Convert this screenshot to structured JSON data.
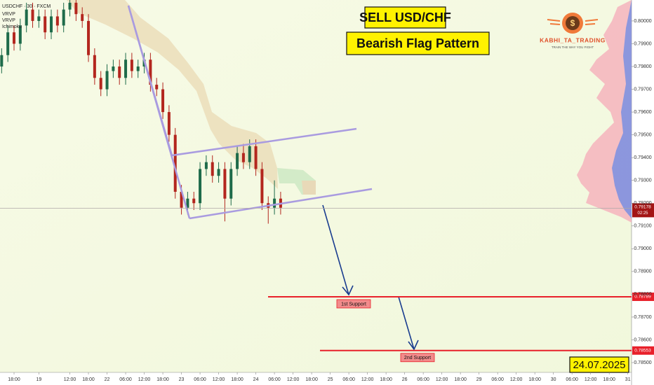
{
  "chart_data": {
    "type": "candlestick",
    "symbol": "USDCHF · 30 · FXCM",
    "indicators": [
      "VRVP",
      "VRVP",
      "Ichimoku"
    ],
    "annotations": {
      "headline": "SELL USD/CHF",
      "pattern": "Bearish Flag Pattern",
      "date": "24.07.2025"
    },
    "brand": {
      "logo_symbol": "$",
      "name": "KABHI_TA_TRADING",
      "slogan": "TRAIN THE WAY YOU FIGHT"
    },
    "x": [
      -4,
      -2,
      0,
      2,
      4,
      6,
      8,
      10,
      12,
      14,
      16,
      18,
      20,
      22,
      24,
      26,
      28,
      30,
      32,
      34,
      36,
      38,
      40,
      42,
      44,
      46,
      48,
      50,
      52,
      54,
      56,
      58,
      60,
      62,
      64,
      66,
      68,
      70,
      72,
      74,
      76,
      78,
      80,
      82,
      84,
      86
    ],
    "open": [
      0.798,
      0.7985,
      0.7995,
      0.799,
      0.7998,
      0.8005,
      0.8,
      0.8002,
      0.7995,
      0.8002,
      0.7998,
      0.8005,
      0.8008,
      0.8003,
      0.8,
      0.7985,
      0.7975,
      0.797,
      0.7978,
      0.798,
      0.7975,
      0.7983,
      0.7978,
      0.798,
      0.7983,
      0.7972,
      0.797,
      0.796,
      0.795,
      0.7925,
      0.7918,
      0.7922,
      0.792,
      0.7935,
      0.7938,
      0.7932,
      0.7935,
      0.7922,
      0.7935,
      0.7942,
      0.7938,
      0.7945,
      0.7935,
      0.792,
      0.7918,
      0.7922
    ],
    "high": [
      0.7988,
      0.7998,
      0.7998,
      0.8001,
      0.8008,
      0.8008,
      0.8005,
      0.8005,
      0.8005,
      0.8005,
      0.8008,
      0.8011,
      0.8011,
      0.8006,
      0.8003,
      0.7988,
      0.7978,
      0.7981,
      0.7983,
      0.7983,
      0.7986,
      0.7986,
      0.7983,
      0.7986,
      0.7986,
      0.7975,
      0.7973,
      0.7963,
      0.7953,
      0.7928,
      0.7925,
      0.7925,
      0.7938,
      0.7941,
      0.7941,
      0.7938,
      0.7938,
      0.7938,
      0.7945,
      0.7946,
      0.7948,
      0.7948,
      0.7938,
      0.7923,
      0.793,
      0.7925
    ],
    "low": [
      0.7977,
      0.7982,
      0.7987,
      0.7987,
      0.7995,
      0.7997,
      0.7997,
      0.7992,
      0.7992,
      0.7995,
      0.7995,
      0.8002,
      0.8,
      0.7997,
      0.7982,
      0.7972,
      0.7967,
      0.7967,
      0.7975,
      0.7972,
      0.7972,
      0.7975,
      0.7975,
      0.7977,
      0.7969,
      0.7967,
      0.7957,
      0.7947,
      0.7922,
      0.7915,
      0.7915,
      0.7917,
      0.7917,
      0.7932,
      0.7929,
      0.7929,
      0.7912,
      0.7919,
      0.7932,
      0.7935,
      0.7935,
      0.7932,
      0.7917,
      0.7911,
      0.7915,
      0.7915
    ],
    "close": [
      0.7985,
      0.7995,
      0.799,
      0.7998,
      0.8005,
      0.8,
      0.8002,
      0.7995,
      0.8002,
      0.7998,
      0.8005,
      0.8008,
      0.8003,
      0.8,
      0.7985,
      0.7975,
      0.797,
      0.7978,
      0.798,
      0.7975,
      0.7983,
      0.7978,
      0.798,
      0.7983,
      0.7972,
      0.797,
      0.796,
      0.795,
      0.7925,
      0.7918,
      0.7922,
      0.792,
      0.7935,
      0.7938,
      0.7932,
      0.7935,
      0.7922,
      0.7935,
      0.7942,
      0.7938,
      0.7945,
      0.7935,
      0.792,
      0.7918,
      0.7922,
      0.7918
    ],
    "up_color": "#1e6b4a",
    "down_color": "#b3261e",
    "xlim": [
      -4.53,
      199.2
    ],
    "xticks": [
      {
        "value": 0,
        "label": "18:00"
      },
      {
        "value": 8,
        "label": "19"
      },
      {
        "value": 18,
        "label": "12:00"
      },
      {
        "value": 24,
        "label": "18:00"
      },
      {
        "value": 30,
        "label": "22"
      },
      {
        "value": 36,
        "label": "06:00"
      },
      {
        "value": 42,
        "label": "12:00"
      },
      {
        "value": 48,
        "label": "18:00"
      },
      {
        "value": 54,
        "label": "23"
      },
      {
        "value": 60,
        "label": "06:00"
      },
      {
        "value": 66,
        "label": "12:00"
      },
      {
        "value": 72,
        "label": "18:00"
      },
      {
        "value": 78,
        "label": "24"
      },
      {
        "value": 84,
        "label": "06:00"
      },
      {
        "value": 90,
        "label": "12:00"
      },
      {
        "value": 96,
        "label": "18:00"
      },
      {
        "value": 102,
        "label": "25"
      },
      {
        "value": 108,
        "label": "06:00"
      },
      {
        "value": 114,
        "label": "12:00"
      },
      {
        "value": 120,
        "label": "18:00"
      },
      {
        "value": 126,
        "label": "26"
      },
      {
        "value": 132,
        "label": "06:00"
      },
      {
        "value": 138,
        "label": "12:00"
      },
      {
        "value": 144,
        "label": "18:00"
      },
      {
        "value": 150,
        "label": "29"
      },
      {
        "value": 156,
        "label": "06:00"
      },
      {
        "value": 162,
        "label": "12:00"
      },
      {
        "value": 168,
        "label": "18:00"
      },
      {
        "value": 174,
        "label": "30"
      },
      {
        "value": 180,
        "label": "06:00"
      },
      {
        "value": 186,
        "label": "12:00"
      },
      {
        "value": 192,
        "label": "18:00"
      },
      {
        "value": 198,
        "label": "31"
      }
    ],
    "ylim": [
      0.78457,
      0.80092
    ],
    "yticks": [
      {
        "value": 0.8,
        "label": "0.80000"
      },
      {
        "value": 0.799,
        "label": "0.79900"
      },
      {
        "value": 0.798,
        "label": "0.79800"
      },
      {
        "value": 0.797,
        "label": "0.79700"
      },
      {
        "value": 0.796,
        "label": "0.79600"
      },
      {
        "value": 0.795,
        "label": "0.79500"
      },
      {
        "value": 0.794,
        "label": "0.79400"
      },
      {
        "value": 0.793,
        "label": "0.79300"
      },
      {
        "value": 0.792,
        "label": "0.79200"
      },
      {
        "value": 0.791,
        "label": "0.79100"
      },
      {
        "value": 0.79,
        "label": "0.79000"
      },
      {
        "value": 0.789,
        "label": "0.78900"
      },
      {
        "value": 0.788,
        "label": "0.78800"
      },
      {
        "value": 0.787,
        "label": "0.78700"
      },
      {
        "value": 0.786,
        "label": "0.78600"
      },
      {
        "value": 0.785,
        "label": "0.78500"
      }
    ],
    "last_price": 0.79178,
    "countdown": "02:25",
    "levels": [
      {
        "name": "1st Support",
        "value": 0.78789,
        "color": "#e8202a"
      },
      {
        "name": "2nd Support",
        "value": 0.78553,
        "color": "#e8202a"
      }
    ]
  }
}
